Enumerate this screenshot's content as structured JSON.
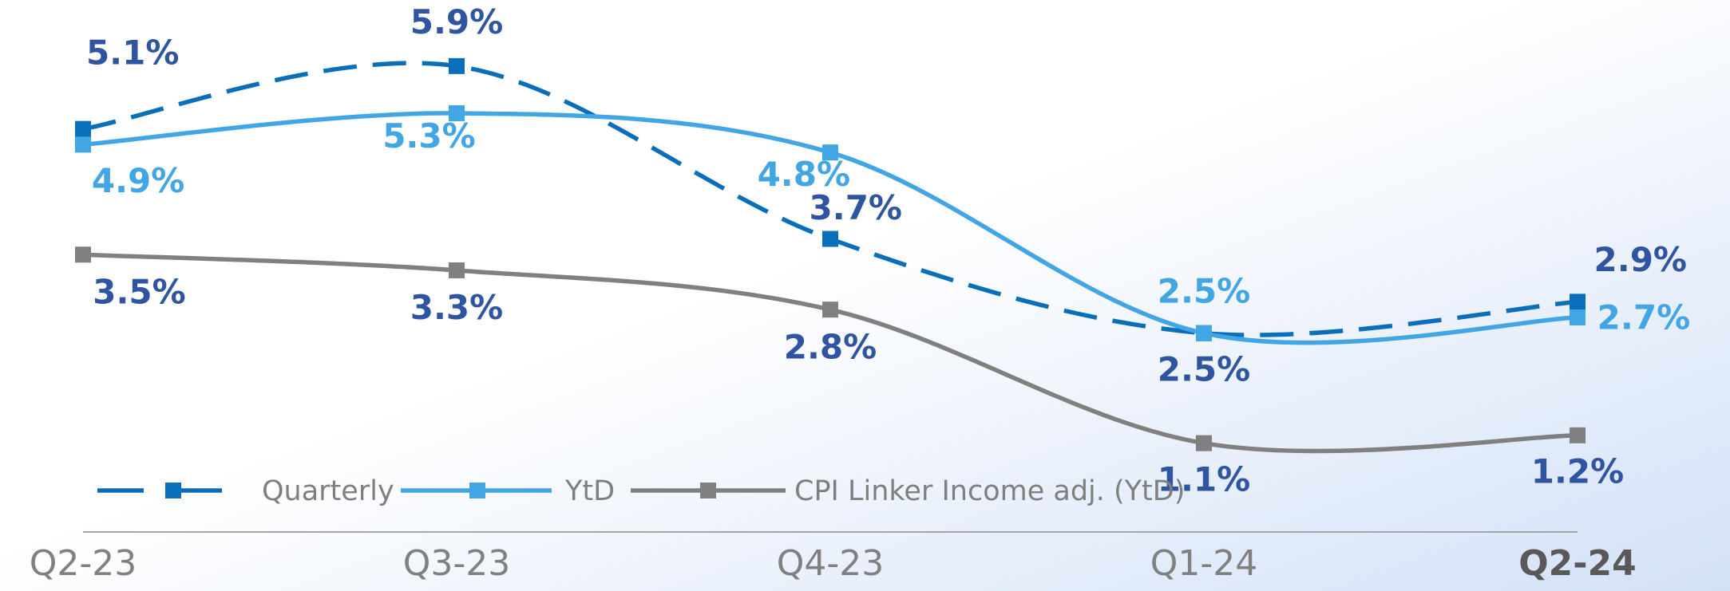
{
  "chart_data": {
    "type": "line",
    "categories": [
      "Q2-23",
      "Q3-23",
      "Q4-23",
      "Q1-24",
      "Q2-24"
    ],
    "series": [
      {
        "name": "Quarterly",
        "color": "#0a6fba",
        "dashed": true,
        "values": [
          5.1,
          5.9,
          3.7,
          2.5,
          2.9
        ],
        "value_labels": [
          "5.1%",
          "5.9%",
          "3.7%",
          "2.5%",
          "2.9%"
        ]
      },
      {
        "name": "YtD",
        "color": "#41a6e3",
        "values": [
          4.9,
          5.3,
          4.8,
          2.5,
          2.7
        ],
        "value_labels": [
          "4.9%",
          "5.3%",
          "4.8%",
          "2.5%",
          "2.7%"
        ]
      },
      {
        "name": "CPI Linker Income adj. (YtD)",
        "color": "#808080",
        "values": [
          3.5,
          3.3,
          2.8,
          1.1,
          1.2
        ],
        "value_labels": [
          "3.5%",
          "3.3%",
          "2.8%",
          "1.1%",
          "1.2%"
        ]
      }
    ],
    "legend": "bottom-left",
    "smooth": true
  }
}
